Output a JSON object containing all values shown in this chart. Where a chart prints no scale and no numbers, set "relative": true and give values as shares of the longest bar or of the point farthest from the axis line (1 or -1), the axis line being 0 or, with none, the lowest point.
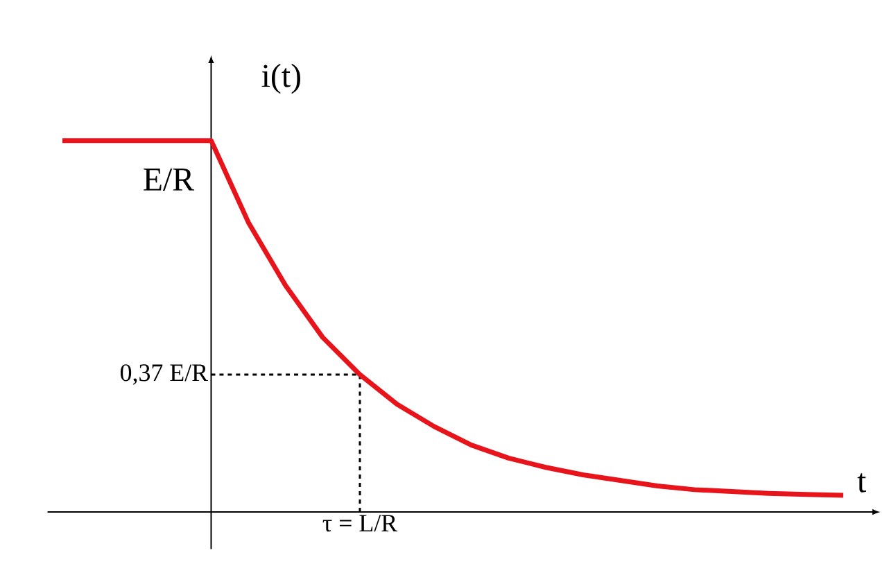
{
  "chart_data": {
    "type": "line",
    "relative": true,
    "xlabel": "t",
    "ylabel": "i(t)",
    "categories": [
      null,
      null,
      null,
      null,
      null,
      null,
      null,
      null,
      null,
      null,
      null,
      null,
      null,
      null,
      null,
      null,
      null,
      null,
      null,
      null,
      null,
      null
    ],
    "values": [
      1,
      1,
      1,
      1,
      1,
      0.78,
      0.61,
      0.47,
      0.37,
      0.29,
      0.23,
      0.18,
      0.145,
      0.12,
      0.1,
      0.085,
      0.07,
      0.06,
      0.055,
      0.05,
      0.047,
      0.045
    ],
    "color": "#e8141b",
    "annotations": [
      {
        "text": "E/R",
        "y": 1
      },
      "τ = L/R"
    ],
    "ref_lines": [
      {
        "axis": "y",
        "value": 0.37,
        "label": "0,37 E/R",
        "line_style": "dashed"
      }
    ]
  }
}
